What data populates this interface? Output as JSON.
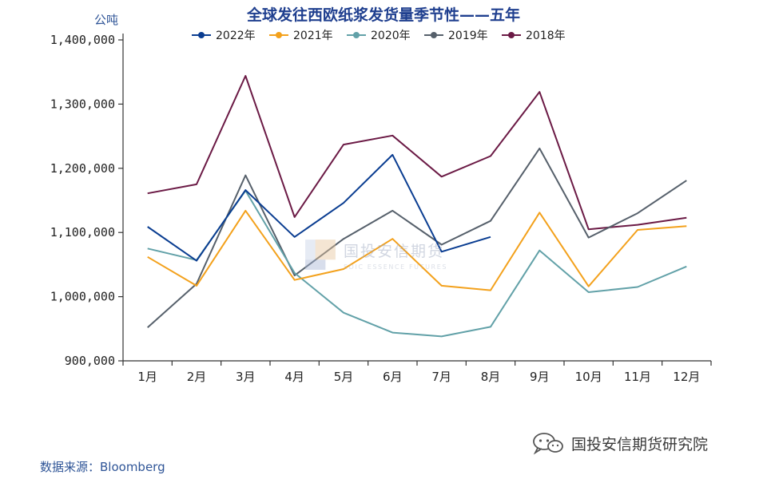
{
  "chart_data": {
    "type": "line",
    "title": "全球发往西欧纸浆发货量季节性——五年",
    "ylabel": "公吨",
    "xlabel": "",
    "ylim": [
      900000,
      1400000
    ],
    "yticks": [
      900000,
      1000000,
      1100000,
      1200000,
      1300000,
      1400000
    ],
    "ytick_labels": [
      "900,000",
      "1,000,000",
      "1,100,000",
      "1,200,000",
      "1,300,000",
      "1,400,000"
    ],
    "categories": [
      "1月",
      "2月",
      "3月",
      "4月",
      "5月",
      "6月",
      "7月",
      "8月",
      "9月",
      "10月",
      "11月",
      "12月"
    ],
    "legend_position": "top-center",
    "grid": false,
    "series": [
      {
        "name": "2022年",
        "color": "#0a3d91",
        "values": [
          1109000,
          1056000,
          1166000,
          1093000,
          1146000,
          1221000,
          1070000,
          1093000,
          null,
          null,
          null,
          null
        ]
      },
      {
        "name": "2021年",
        "color": "#f3a11c",
        "values": [
          1062000,
          1017000,
          1134000,
          1026000,
          1043000,
          1090000,
          1017000,
          1010000,
          1131000,
          1016000,
          1104000,
          1110000
        ]
      },
      {
        "name": "2020年",
        "color": "#62a1a8",
        "values": [
          1075000,
          1057000,
          1165000,
          1037000,
          975000,
          944000,
          938000,
          953000,
          1072000,
          1007000,
          1015000,
          1047000
        ]
      },
      {
        "name": "2019年",
        "color": "#56606b",
        "values": [
          952000,
          1020000,
          1189000,
          1033000,
          1090000,
          1134000,
          1081000,
          1118000,
          1231000,
          1092000,
          1130000,
          1181000
        ]
      },
      {
        "name": "2018年",
        "color": "#6b1a45",
        "values": [
          1161000,
          1175000,
          1344000,
          1124000,
          1237000,
          1251000,
          1187000,
          1219000,
          1319000,
          1105000,
          1112000,
          1123000
        ]
      }
    ]
  },
  "watermark": {
    "cn": "国投安信期货",
    "en": "SDIC ESSENCE FUTURES"
  },
  "footer": {
    "source": "数据来源：Bloomberg",
    "brand": "国投安信期货研究院"
  }
}
